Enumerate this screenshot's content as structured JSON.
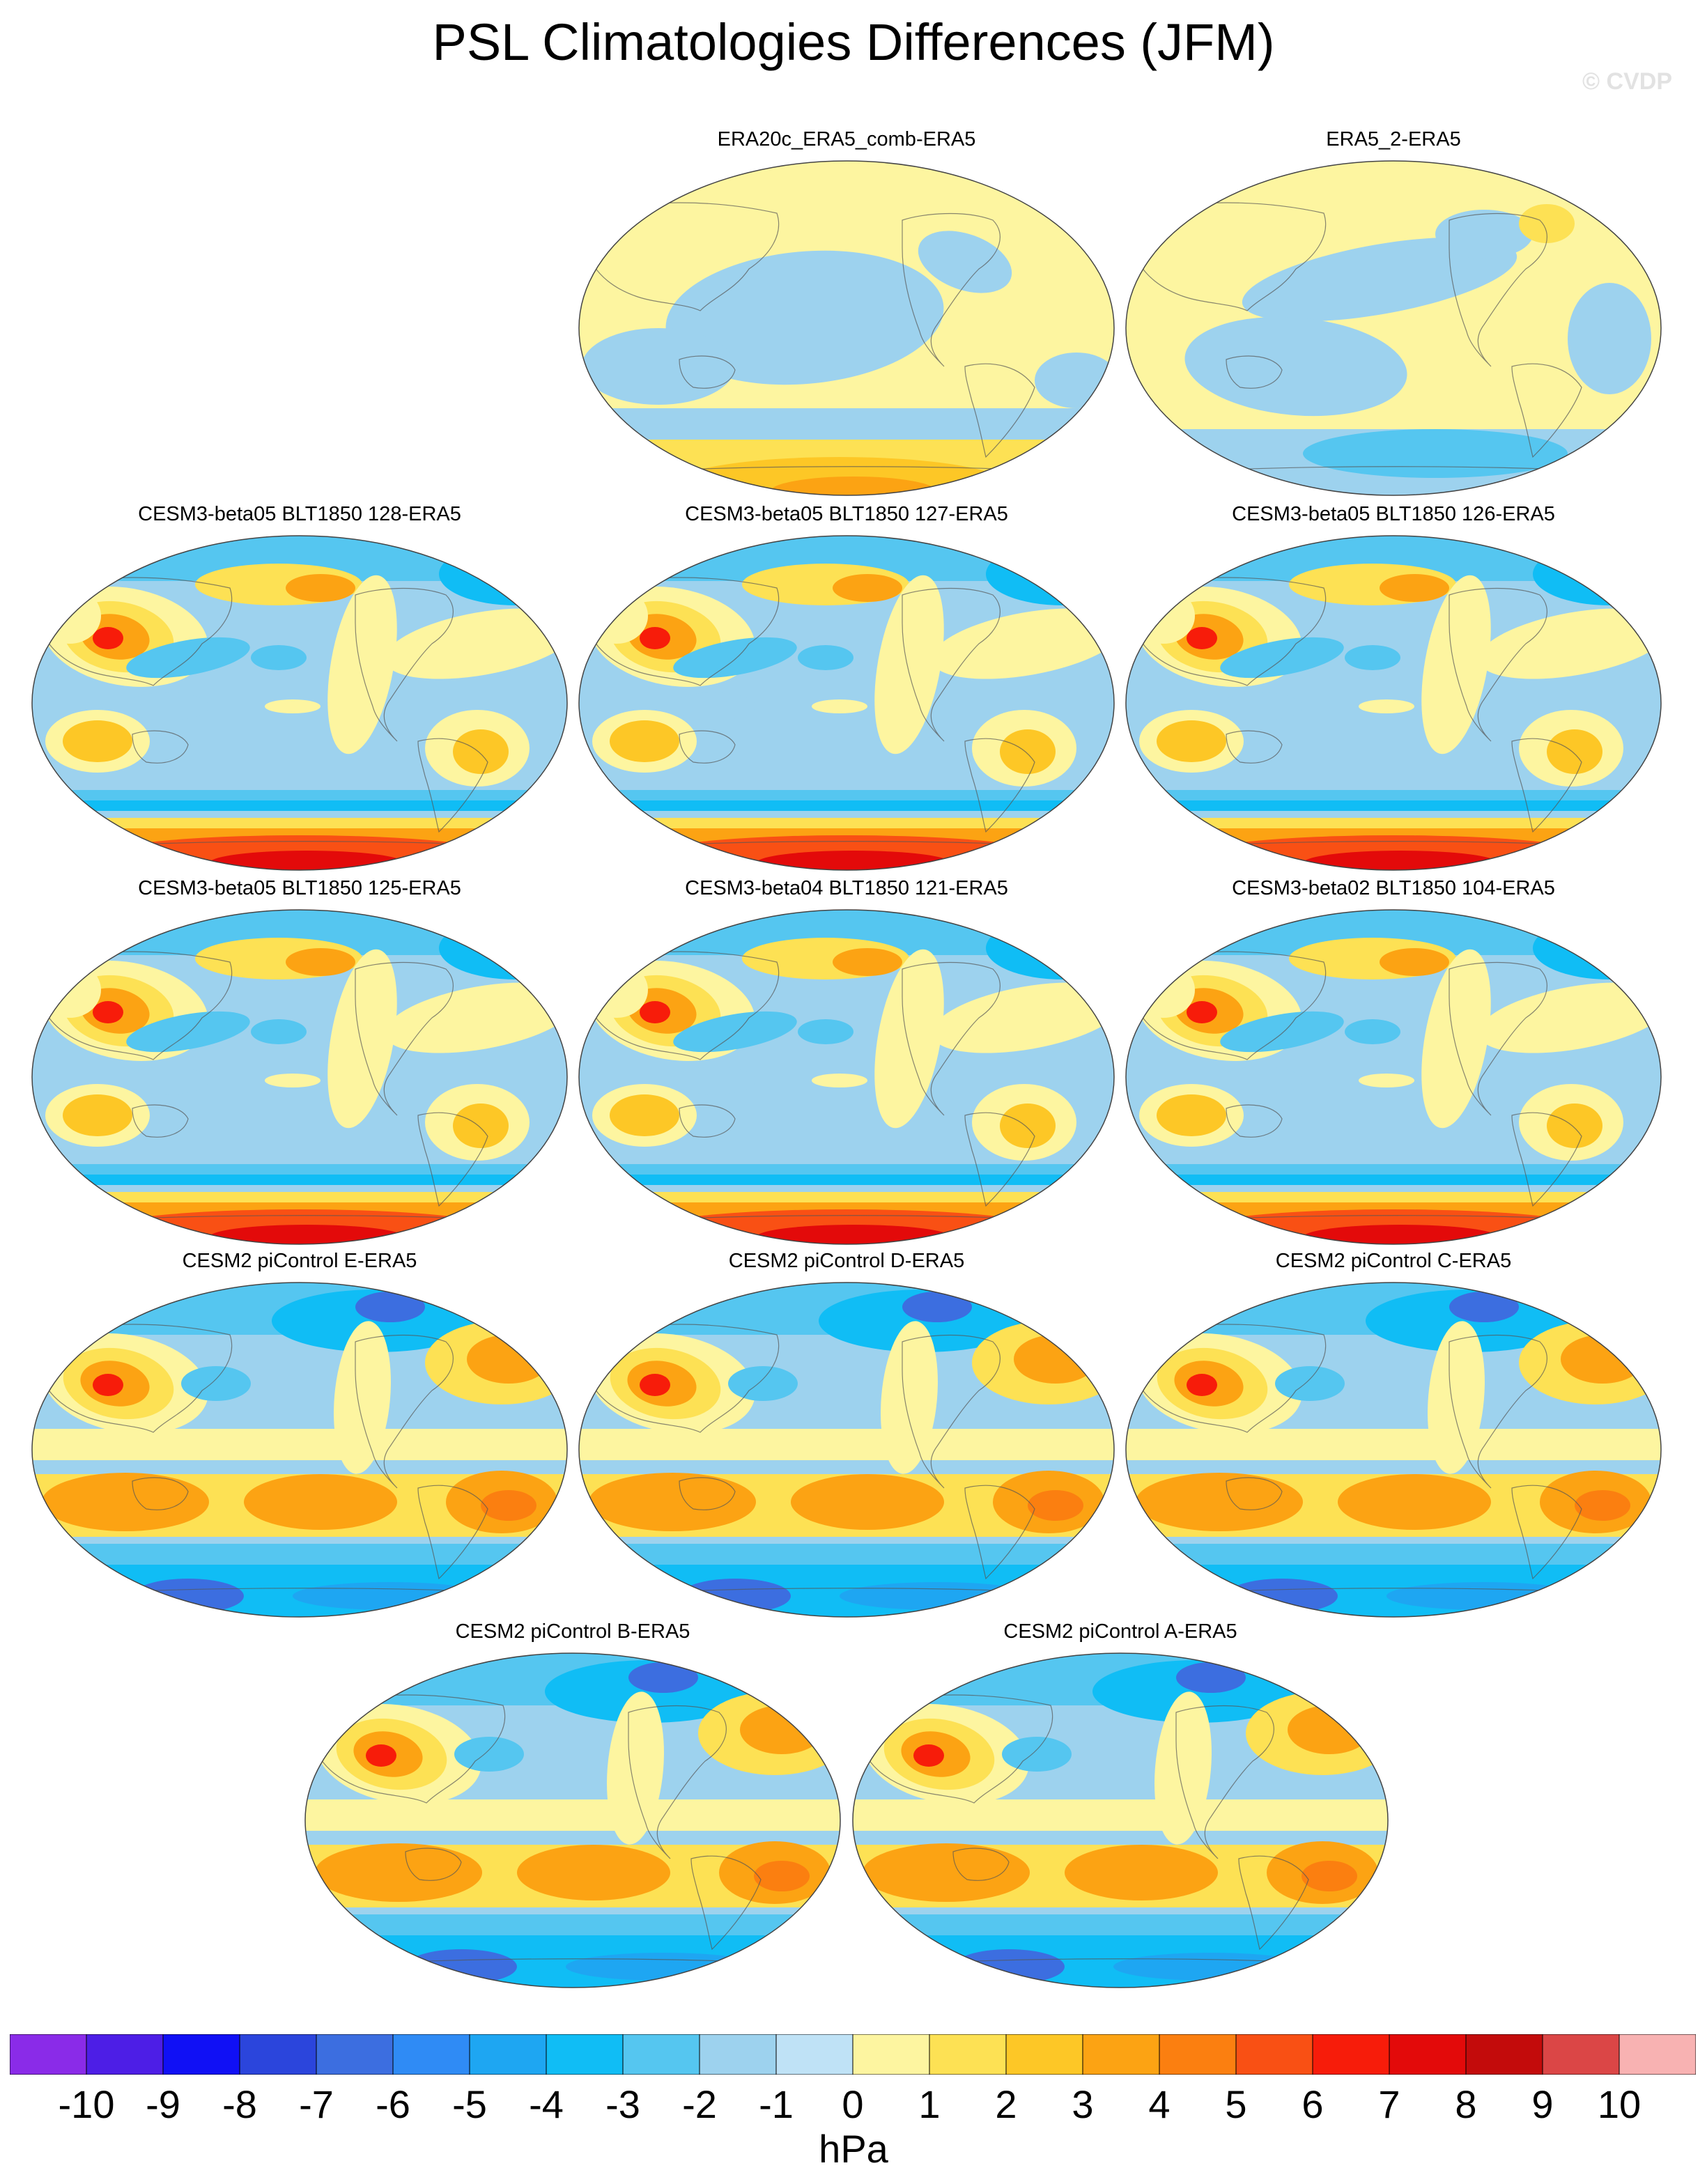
{
  "figure": {
    "title": "PSL Climatologies Differences (JFM)",
    "watermark": "© CVDP"
  },
  "panels": [
    {
      "title": "ERA20c_ERA5_comb-ERA5",
      "style": "ERA20c"
    },
    {
      "title": "ERA5_2-ERA5",
      "style": "ERA5_2"
    },
    {
      "title": "CESM3-beta05 BLT1850 128-ERA5",
      "style": "cesm3"
    },
    {
      "title": "CESM3-beta05 BLT1850 127-ERA5",
      "style": "cesm3"
    },
    {
      "title": "CESM3-beta05 BLT1850 126-ERA5",
      "style": "cesm3"
    },
    {
      "title": "CESM3-beta05 BLT1850 125-ERA5",
      "style": "cesm3"
    },
    {
      "title": "CESM3-beta04 BLT1850 121-ERA5",
      "style": "cesm3"
    },
    {
      "title": "CESM3-beta02 BLT1850 104-ERA5",
      "style": "cesm3"
    },
    {
      "title": "CESM2 piControl E-ERA5",
      "style": "cesm2"
    },
    {
      "title": "CESM2 piControl D-ERA5",
      "style": "cesm2"
    },
    {
      "title": "CESM2 piControl C-ERA5",
      "style": "cesm2"
    },
    {
      "title": "CESM2 piControl B-ERA5",
      "style": "cesm2"
    },
    {
      "title": "CESM2 piControl A-ERA5",
      "style": "cesm2"
    }
  ],
  "colorbar": {
    "labels": [
      "-10",
      "-9",
      "-8",
      "-7",
      "-6",
      "-5",
      "-4",
      "-3",
      "-2",
      "-1",
      "0",
      "1",
      "2",
      "3",
      "4",
      "5",
      "6",
      "7",
      "8",
      "9",
      "10"
    ],
    "colors": [
      "#8a2be8",
      "#4d1ee6",
      "#1010f5",
      "#2b45dc",
      "#3c6ee0",
      "#2f8bf5",
      "#1ea6f2",
      "#10bdf5",
      "#55c6f0",
      "#9dd2ee",
      "#bfe2f6",
      "#fdf5a0",
      "#fde154",
      "#fdc726",
      "#fca313",
      "#fb7f10",
      "#f95014",
      "#f71c0a",
      "#e30a0a",
      "#c30b0b",
      "#db4646",
      "#f8b2b2"
    ],
    "units": "hPa"
  }
}
